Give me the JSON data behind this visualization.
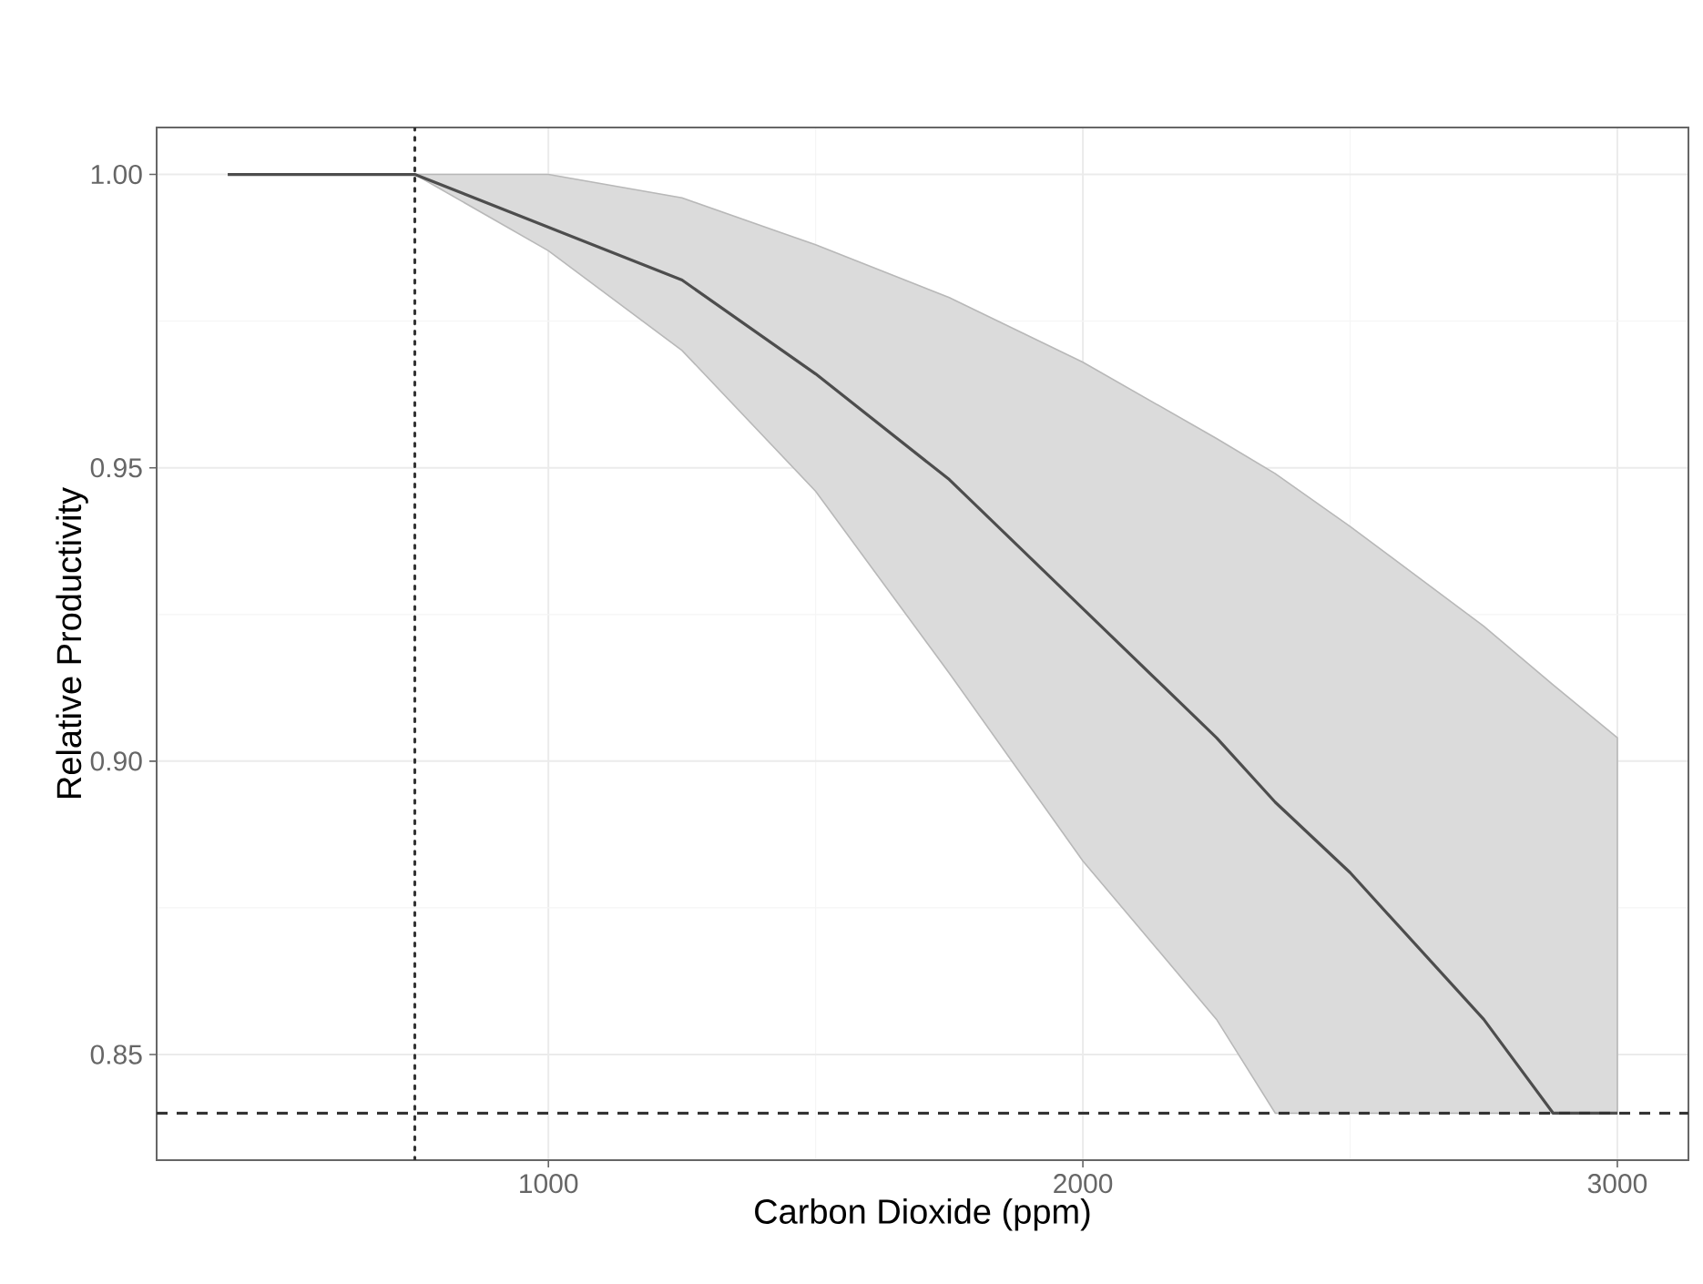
{
  "chart_data": {
    "type": "line",
    "xlabel": "Carbon Dioxide (ppm)",
    "ylabel": "Relative Productivity",
    "x": [
      400,
      750,
      1000,
      1250,
      1500,
      1750,
      2000,
      2250,
      2360,
      2500,
      2750,
      2880,
      3000
    ],
    "series": [
      {
        "color": "#4d4d4d",
        "values": [
          1.0,
          1.0,
          0.991,
          0.982,
          0.966,
          0.948,
          0.926,
          0.904,
          0.893,
          0.881,
          0.856,
          0.84,
          0.84
        ],
        "lower": [
          null,
          1.0,
          0.987,
          0.97,
          0.946,
          0.915,
          0.883,
          0.856,
          0.84,
          0.84,
          0.84,
          0.84,
          0.84
        ],
        "upper": [
          null,
          1.0,
          1.0,
          0.996,
          0.988,
          0.979,
          0.968,
          0.955,
          0.949,
          0.94,
          0.923,
          0.913,
          0.904
        ]
      }
    ],
    "xlim": [
      267,
      3133
    ],
    "ylim": [
      0.832,
      1.008
    ],
    "xticks": [
      1000,
      2000,
      3000
    ],
    "yticks": [
      {
        "value": 0.85,
        "label": "0.85"
      },
      {
        "value": 0.9,
        "label": "0.90"
      },
      {
        "value": 0.95,
        "label": "0.95"
      },
      {
        "value": 1.0,
        "label": "1.00"
      }
    ],
    "grid": true,
    "marker": "none",
    "line_style": "solid",
    "ref_lines": [
      {
        "axis": "x",
        "value": 750,
        "line_style": "dotted",
        "color": "#333333"
      },
      {
        "axis": "y",
        "value": 0.84,
        "line_style": "dashed",
        "color": "#333333"
      }
    ]
  }
}
